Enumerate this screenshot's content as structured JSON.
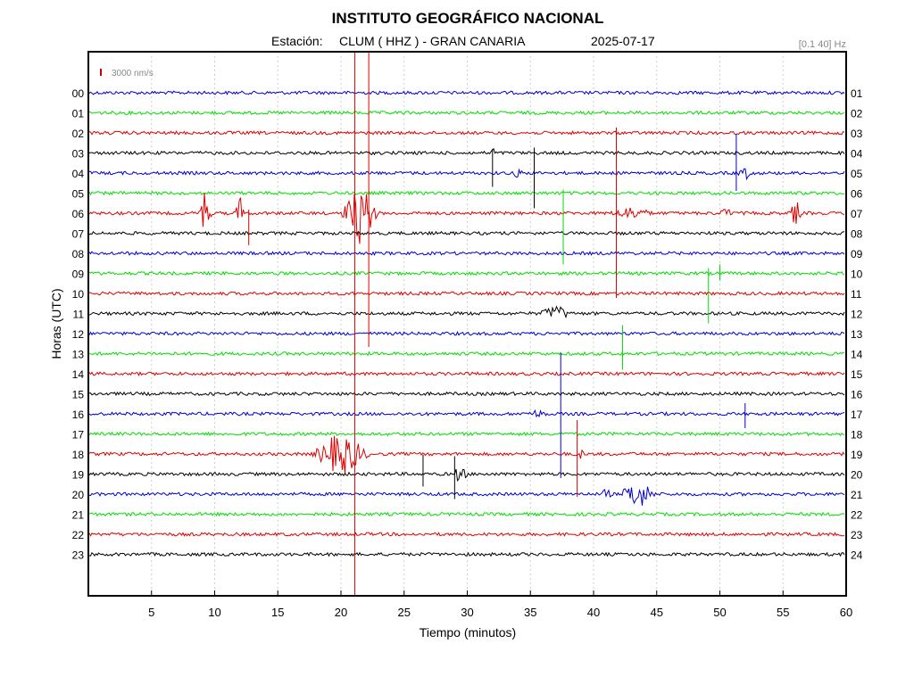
{
  "chart_data": {
    "type": "line",
    "title": "INSTITUTO GEOGRÁFICO NACIONAL",
    "station_label": "Estación:",
    "station": "CLUM ( HHZ ) - GRAN CANARIA",
    "date": "2025-07-17",
    "filter": "[0.1 40] Hz",
    "scale_label": "3000 nm/s",
    "scale_color": "#cc0000",
    "xlabel": "Tiempo (minutos)",
    "ylabel": "Horas (UTC)",
    "xlim": [
      0,
      60
    ],
    "x_ticks": [
      5,
      10,
      15,
      20,
      25,
      30,
      35,
      40,
      45,
      50,
      55,
      60
    ],
    "grid": true,
    "trace_colors": [
      "#0000cc",
      "#00dd00",
      "#dd0000",
      "#000000"
    ],
    "hours_left": [
      "00",
      "01",
      "02",
      "03",
      "04",
      "05",
      "06",
      "07",
      "08",
      "09",
      "10",
      "11",
      "12",
      "13",
      "14",
      "15",
      "16",
      "17",
      "18",
      "19",
      "20",
      "21",
      "22",
      "23"
    ],
    "hours_right": [
      "01",
      "02",
      "03",
      "04",
      "05",
      "06",
      "07",
      "08",
      "09",
      "10",
      "11",
      "12",
      "13",
      "14",
      "15",
      "16",
      "17",
      "18",
      "19",
      "20",
      "21",
      "22",
      "23",
      "24"
    ],
    "events": [
      {
        "row": 6,
        "minute": 9.2,
        "amp": 28,
        "width": 0.6
      },
      {
        "row": 6,
        "minute": 12.0,
        "amp": 22,
        "width": 0.4
      },
      {
        "row": 6,
        "minute": 21.5,
        "amp": 35,
        "width": 1.6
      },
      {
        "row": 6,
        "minute": 43.0,
        "amp": 8,
        "width": 2.2
      },
      {
        "row": 6,
        "minute": 50.5,
        "amp": 6,
        "width": 1.0
      },
      {
        "row": 6,
        "minute": 56.0,
        "amp": 18,
        "width": 0.5
      },
      {
        "row": 3,
        "minute": 32.0,
        "amp": 10,
        "width": 0.2
      },
      {
        "row": 4,
        "minute": 34.0,
        "amp": 6,
        "width": 0.6
      },
      {
        "row": 4,
        "minute": 52.0,
        "amp": 8,
        "width": 0.8
      },
      {
        "row": 11,
        "minute": 37.0,
        "amp": 10,
        "width": 1.6
      },
      {
        "row": 16,
        "minute": 35.5,
        "amp": 5,
        "width": 1.4
      },
      {
        "row": 18,
        "minute": 20.0,
        "amp": 26,
        "width": 2.5
      },
      {
        "row": 18,
        "minute": 39.0,
        "amp": 6,
        "width": 0.6
      },
      {
        "row": 19,
        "minute": 29.4,
        "amp": 10,
        "width": 0.8
      },
      {
        "row": 20,
        "minute": 43.5,
        "amp": 18,
        "width": 1.6
      },
      {
        "row": 20,
        "minute": 41.0,
        "amp": 7,
        "width": 0.6
      }
    ],
    "spikes": [
      {
        "row": 2,
        "minute": 21.1,
        "up": 90,
        "down": 530
      },
      {
        "row": 2,
        "minute": 22.2,
        "up": 90,
        "down": 240
      },
      {
        "row": 2,
        "minute": 41.8,
        "up": 6,
        "down": 185
      },
      {
        "row": 3,
        "minute": 35.3,
        "up": 6,
        "down": 62
      },
      {
        "row": 3,
        "minute": 32.0,
        "up": 4,
        "down": 38
      },
      {
        "row": 4,
        "minute": 51.3,
        "up": 44,
        "down": 20
      },
      {
        "row": 5,
        "minute": 37.6,
        "up": 4,
        "down": 80
      },
      {
        "row": 6,
        "minute": 12.7,
        "up": 4,
        "down": 36
      },
      {
        "row": 9,
        "minute": 49.1,
        "up": 6,
        "down": 56
      },
      {
        "row": 9,
        "minute": 50.0,
        "up": 10,
        "down": 8
      },
      {
        "row": 13,
        "minute": 42.3,
        "up": 32,
        "down": 18
      },
      {
        "row": 16,
        "minute": 37.4,
        "up": 68,
        "down": 72
      },
      {
        "row": 16,
        "minute": 52.0,
        "up": 12,
        "down": 16
      },
      {
        "row": 18,
        "minute": 38.7,
        "up": 38,
        "down": 48
      },
      {
        "row": 19,
        "minute": 26.5,
        "up": 22,
        "down": 14
      },
      {
        "row": 19,
        "minute": 29.0,
        "up": 20,
        "down": 28
      }
    ]
  }
}
